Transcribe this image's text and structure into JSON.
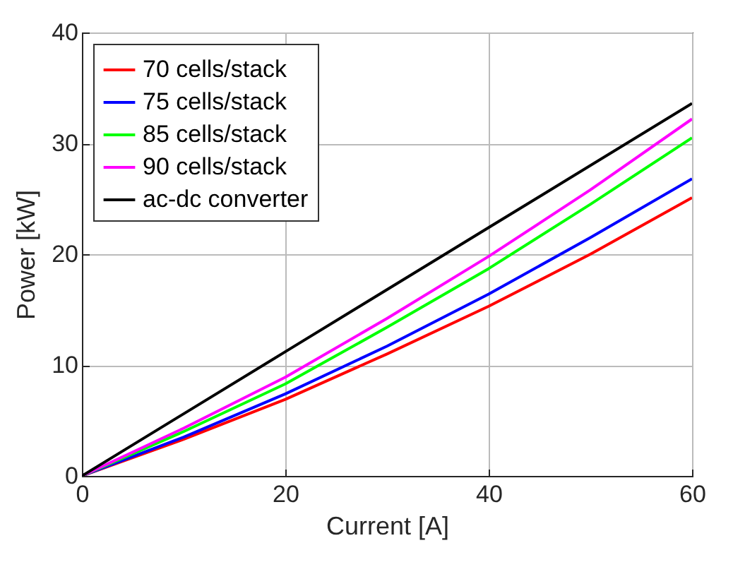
{
  "chart_data": {
    "type": "line",
    "xlabel": "Current [A]",
    "ylabel": "Power [kW]",
    "xlim": [
      0,
      60
    ],
    "ylim": [
      0,
      40
    ],
    "xticks": [
      0,
      20,
      40,
      60
    ],
    "yticks": [
      0,
      10,
      20,
      30,
      40
    ],
    "grid": true,
    "legend": "top left",
    "marker": "none",
    "line_style": "solid",
    "series": [
      {
        "name": "70 cells/stack",
        "color": "#ff0000",
        "x": [
          0,
          10,
          20,
          30,
          40,
          50,
          60
        ],
        "values": [
          0,
          3.3,
          6.9,
          11,
          15.3,
          20,
          25.1
        ]
      },
      {
        "name": "75 cells/stack",
        "color": "#0000ff",
        "x": [
          0,
          10,
          20,
          30,
          40,
          50,
          60
        ],
        "values": [
          0,
          3.5,
          7.4,
          11.7,
          16.4,
          21.5,
          26.8
        ]
      },
      {
        "name": "85 cells/stack",
        "color": "#00ff00",
        "x": [
          0,
          10,
          20,
          30,
          40,
          50,
          60
        ],
        "values": [
          0,
          4,
          8.3,
          13.4,
          18.7,
          24.5,
          30.5
        ]
      },
      {
        "name": "90 cells/stack",
        "color": "#ff00ff",
        "x": [
          0,
          10,
          20,
          30,
          40,
          50,
          60
        ],
        "values": [
          0,
          4.3,
          8.9,
          14.2,
          19.8,
          25.8,
          32.2
        ]
      },
      {
        "name": "ac-dc converter",
        "color": "#000000",
        "x": [
          0,
          20,
          40,
          60
        ],
        "values": [
          0,
          11.2,
          22.4,
          33.6
        ]
      }
    ]
  }
}
